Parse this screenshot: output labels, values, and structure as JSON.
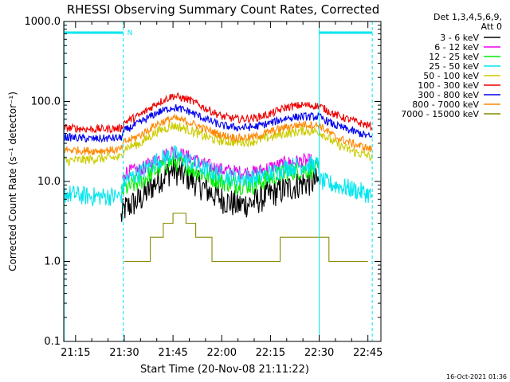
{
  "chart_data": {
    "type": "line",
    "title": "RHESSI Observing Summary Count Rates, Corrected",
    "xlabel": "Start Time (20-Nov-08 21:11:22)",
    "ylabel": "Corrected Count Rate (s⁻¹ detector⁻¹)",
    "y_scale": "log",
    "ylim": [
      0.1,
      1000
    ],
    "xlim": [
      "21:11:22",
      "22:49:00"
    ],
    "y_ticks": [
      "0.1",
      "1.0",
      "10.0",
      "100.0",
      "1000.0"
    ],
    "x_ticks": [
      "21:15",
      "21:30",
      "21:45",
      "22:00",
      "22:15",
      "22:30",
      "22:45"
    ],
    "legend_header": [
      "Det 1,3,4,5,6,9,",
      "Att 0"
    ],
    "legend_position": "right",
    "night_markers": {
      "solid_lines": [
        "21:11:30",
        "22:30:00"
      ],
      "dashed_lines": [
        "21:29:40",
        "22:46:20"
      ],
      "label": "N",
      "color": "#00e5ee"
    },
    "timestamp": "16-Oct-2021 01:36",
    "series": [
      {
        "name": "3 - 6 keV",
        "color": "#000000",
        "noise": 0.18,
        "points": [
          [
            "21:29:00",
            3.5
          ],
          [
            "21:30:00",
            4.5
          ],
          [
            "21:35:00",
            6
          ],
          [
            "21:40:00",
            10
          ],
          [
            "21:45:00",
            14
          ],
          [
            "21:50:00",
            11
          ],
          [
            "21:55:00",
            8
          ],
          [
            "22:00:00",
            6
          ],
          [
            "22:05:00",
            5
          ],
          [
            "22:10:00",
            5.5
          ],
          [
            "22:15:00",
            7
          ],
          [
            "22:20:00",
            8
          ],
          [
            "22:25:00",
            9.5
          ],
          [
            "22:30:00",
            10
          ]
        ]
      },
      {
        "name": "6 - 12 keV",
        "color": "#ee00ee",
        "noise": 0.09,
        "points": [
          [
            "21:29:30",
            10
          ],
          [
            "21:30:00",
            13
          ],
          [
            "21:35:00",
            14
          ],
          [
            "21:40:00",
            19
          ],
          [
            "21:45:00",
            24
          ],
          [
            "21:50:00",
            20
          ],
          [
            "21:55:00",
            16
          ],
          [
            "22:00:00",
            14
          ],
          [
            "22:05:00",
            13
          ],
          [
            "22:10:00",
            13
          ],
          [
            "22:15:00",
            15
          ],
          [
            "22:20:00",
            17
          ],
          [
            "22:25:00",
            18
          ],
          [
            "22:28:00",
            18
          ]
        ]
      },
      {
        "name": "12 - 25 keV",
        "color": "#00ee00",
        "noise": 0.12,
        "points": [
          [
            "21:29:00",
            7
          ],
          [
            "21:30:00",
            8
          ],
          [
            "21:35:00",
            10
          ],
          [
            "21:40:00",
            14
          ],
          [
            "21:45:00",
            18
          ],
          [
            "21:50:00",
            15
          ],
          [
            "21:55:00",
            12
          ],
          [
            "22:00:00",
            10
          ],
          [
            "22:05:00",
            9
          ],
          [
            "22:10:00",
            9
          ],
          [
            "22:15:00",
            11
          ],
          [
            "22:20:00",
            13
          ],
          [
            "22:25:00",
            14
          ],
          [
            "22:30:00",
            14
          ]
        ]
      },
      {
        "name": "25 - 50 keV",
        "color": "#00e5ee",
        "noise": 0.12,
        "points": [
          [
            "21:11:30",
            7
          ],
          [
            "21:20:00",
            6.5
          ],
          [
            "21:29:00",
            6.5
          ],
          [
            "21:30:00",
            10
          ],
          [
            "21:35:00",
            13
          ],
          [
            "21:40:00",
            18
          ],
          [
            "21:45:00",
            22
          ],
          [
            "21:50:00",
            18
          ],
          [
            "21:55:00",
            14
          ],
          [
            "22:00:00",
            12
          ],
          [
            "22:05:00",
            11
          ],
          [
            "22:10:00",
            11
          ],
          [
            "22:15:00",
            12.5
          ],
          [
            "22:20:00",
            15
          ],
          [
            "22:25:00",
            16
          ],
          [
            "22:29:30",
            16
          ],
          [
            "22:30:30",
            10
          ],
          [
            "22:35:00",
            9
          ],
          [
            "22:40:00",
            8
          ],
          [
            "22:45:00",
            7
          ],
          [
            "22:46:20",
            6.5
          ]
        ]
      },
      {
        "name": "50 - 100 keV",
        "color": "#cccc00",
        "noise": 0.06,
        "points": [
          [
            "21:11:30",
            18
          ],
          [
            "21:20:00",
            19
          ],
          [
            "21:29:00",
            20
          ],
          [
            "21:30:00",
            26
          ],
          [
            "21:35:00",
            30
          ],
          [
            "21:40:00",
            42
          ],
          [
            "21:45:00",
            50
          ],
          [
            "21:50:00",
            44
          ],
          [
            "21:55:00",
            36
          ],
          [
            "22:00:00",
            32
          ],
          [
            "22:05:00",
            31
          ],
          [
            "22:10:00",
            32
          ],
          [
            "22:15:00",
            36
          ],
          [
            "22:20:00",
            40
          ],
          [
            "22:25:00",
            43
          ],
          [
            "22:30:00",
            42
          ],
          [
            "22:35:00",
            30
          ],
          [
            "22:40:00",
            24
          ],
          [
            "22:45:00",
            21
          ],
          [
            "22:46:20",
            20
          ]
        ]
      },
      {
        "name": "100 - 300 keV",
        "color": "#ee0000",
        "noise": 0.05,
        "points": [
          [
            "21:11:30",
            47
          ],
          [
            "21:20:00",
            45
          ],
          [
            "21:29:00",
            46
          ],
          [
            "21:30:00",
            55
          ],
          [
            "21:35:00",
            68
          ],
          [
            "21:40:00",
            95
          ],
          [
            "21:45:00",
            118
          ],
          [
            "21:50:00",
            105
          ],
          [
            "21:55:00",
            82
          ],
          [
            "22:00:00",
            65
          ],
          [
            "22:05:00",
            60
          ],
          [
            "22:10:00",
            62
          ],
          [
            "22:15:00",
            70
          ],
          [
            "22:20:00",
            85
          ],
          [
            "22:25:00",
            90
          ],
          [
            "22:30:00",
            88
          ],
          [
            "22:35:00",
            68
          ],
          [
            "22:40:00",
            58
          ],
          [
            "22:45:00",
            50
          ],
          [
            "22:46:20",
            48
          ]
        ]
      },
      {
        "name": "300 - 800 keV",
        "color": "#0000ee",
        "noise": 0.05,
        "points": [
          [
            "21:11:30",
            36
          ],
          [
            "21:20:00",
            34
          ],
          [
            "21:29:00",
            35
          ],
          [
            "21:30:00",
            43
          ],
          [
            "21:35:00",
            55
          ],
          [
            "21:40:00",
            72
          ],
          [
            "21:45:00",
            85
          ],
          [
            "21:50:00",
            75
          ],
          [
            "21:55:00",
            60
          ],
          [
            "22:00:00",
            50
          ],
          [
            "22:05:00",
            47
          ],
          [
            "22:10:00",
            48
          ],
          [
            "22:15:00",
            54
          ],
          [
            "22:20:00",
            62
          ],
          [
            "22:25:00",
            65
          ],
          [
            "22:30:00",
            64
          ],
          [
            "22:35:00",
            50
          ],
          [
            "22:40:00",
            43
          ],
          [
            "22:45:00",
            37
          ],
          [
            "22:46:20",
            35
          ]
        ]
      },
      {
        "name": "800 - 7000 keV",
        "color": "#ff8800",
        "noise": 0.05,
        "points": [
          [
            "21:11:30",
            25
          ],
          [
            "21:20:00",
            24
          ],
          [
            "21:29:00",
            25
          ],
          [
            "21:30:00",
            31
          ],
          [
            "21:35:00",
            38
          ],
          [
            "21:40:00",
            52
          ],
          [
            "21:45:00",
            62
          ],
          [
            "21:50:00",
            55
          ],
          [
            "21:55:00",
            45
          ],
          [
            "22:00:00",
            38
          ],
          [
            "22:05:00",
            35
          ],
          [
            "22:10:00",
            36
          ],
          [
            "22:15:00",
            42
          ],
          [
            "22:20:00",
            48
          ],
          [
            "22:25:00",
            52
          ],
          [
            "22:30:00",
            50
          ],
          [
            "22:35:00",
            36
          ],
          [
            "22:40:00",
            30
          ],
          [
            "22:45:00",
            26
          ],
          [
            "22:46:20",
            25
          ]
        ]
      },
      {
        "name": "7000 - 15000 keV",
        "color": "#888800",
        "noise": 0,
        "points": [
          [
            "21:30:00",
            1
          ],
          [
            "21:37:00",
            1
          ],
          [
            "21:38:00",
            2
          ],
          [
            "21:41:00",
            2
          ],
          [
            "21:42:00",
            3
          ],
          [
            "21:44:00",
            3
          ],
          [
            "21:45:00",
            4
          ],
          [
            "21:48:00",
            4
          ],
          [
            "21:49:00",
            3
          ],
          [
            "21:51:00",
            3
          ],
          [
            "21:52:00",
            2
          ],
          [
            "21:56:00",
            2
          ],
          [
            "21:57:00",
            1
          ],
          [
            "22:17:00",
            1
          ],
          [
            "22:18:00",
            2
          ],
          [
            "22:32:00",
            2
          ],
          [
            "22:33:00",
            1
          ],
          [
            "22:45:00",
            1
          ]
        ]
      }
    ]
  }
}
